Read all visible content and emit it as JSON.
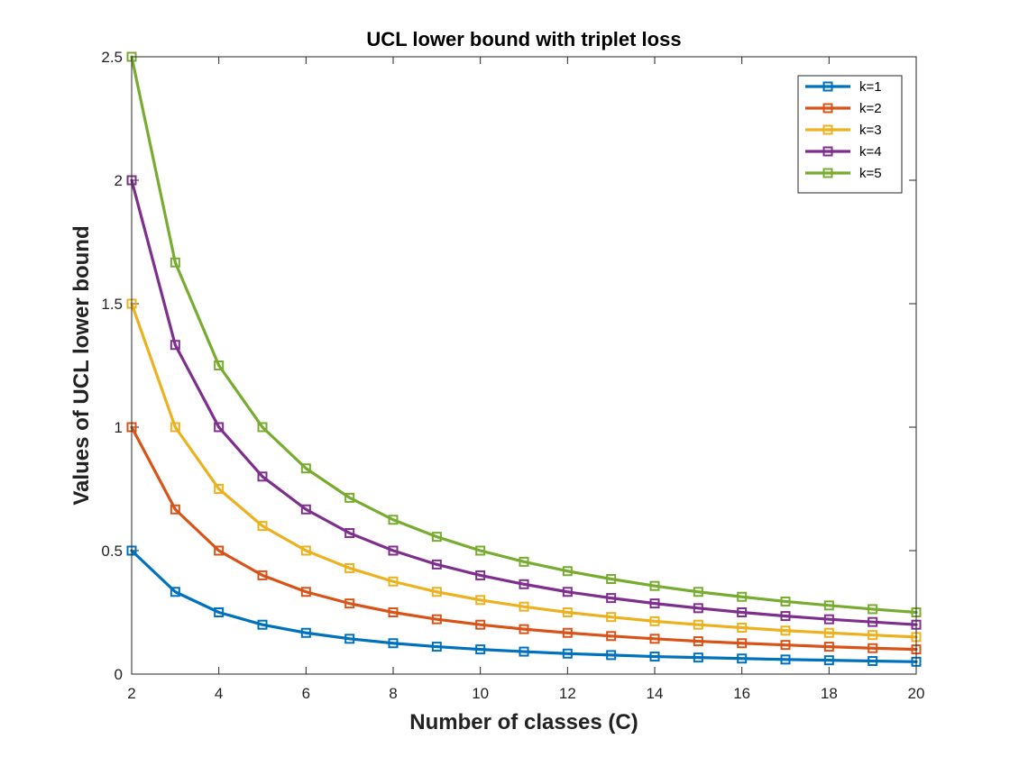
{
  "chart_data": {
    "type": "line",
    "title": "UCL lower bound with triplet loss",
    "xlabel": "Number of classes (C)",
    "ylabel": "Values of UCL lower bound",
    "xlim": [
      2,
      20
    ],
    "ylim": [
      0,
      2.5
    ],
    "x_ticks": [
      "2",
      "4",
      "6",
      "8",
      "10",
      "12",
      "14",
      "16",
      "18",
      "20"
    ],
    "y_ticks": [
      "0",
      "0.5",
      "1",
      "1.5",
      "2",
      "2.5"
    ],
    "legend_position": "top-right",
    "marker": "square",
    "x": [
      2,
      3,
      4,
      5,
      6,
      7,
      8,
      9,
      10,
      11,
      12,
      13,
      14,
      15,
      16,
      17,
      18,
      19,
      20
    ],
    "series": [
      {
        "name": "k=1",
        "color": "#0072BD",
        "values": [
          0.5,
          0.333,
          0.25,
          0.2,
          0.167,
          0.143,
          0.125,
          0.111,
          0.1,
          0.091,
          0.083,
          0.077,
          0.071,
          0.067,
          0.063,
          0.059,
          0.056,
          0.053,
          0.05
        ]
      },
      {
        "name": "k=2",
        "color": "#D95319",
        "values": [
          1.0,
          0.667,
          0.5,
          0.4,
          0.333,
          0.286,
          0.25,
          0.222,
          0.2,
          0.182,
          0.167,
          0.154,
          0.143,
          0.133,
          0.125,
          0.118,
          0.111,
          0.105,
          0.1
        ]
      },
      {
        "name": "k=3",
        "color": "#EDB120",
        "values": [
          1.5,
          1.0,
          0.75,
          0.6,
          0.5,
          0.429,
          0.375,
          0.333,
          0.3,
          0.273,
          0.25,
          0.231,
          0.214,
          0.2,
          0.188,
          0.176,
          0.167,
          0.158,
          0.15
        ]
      },
      {
        "name": "k=4",
        "color": "#7E2F8E",
        "values": [
          2.0,
          1.333,
          1.0,
          0.8,
          0.667,
          0.571,
          0.5,
          0.444,
          0.4,
          0.364,
          0.333,
          0.308,
          0.286,
          0.267,
          0.25,
          0.235,
          0.222,
          0.211,
          0.2
        ]
      },
      {
        "name": "k=5",
        "color": "#77AC30",
        "values": [
          2.5,
          1.667,
          1.25,
          1.0,
          0.833,
          0.714,
          0.625,
          0.556,
          0.5,
          0.455,
          0.417,
          0.385,
          0.357,
          0.333,
          0.313,
          0.294,
          0.278,
          0.263,
          0.25
        ]
      }
    ]
  }
}
